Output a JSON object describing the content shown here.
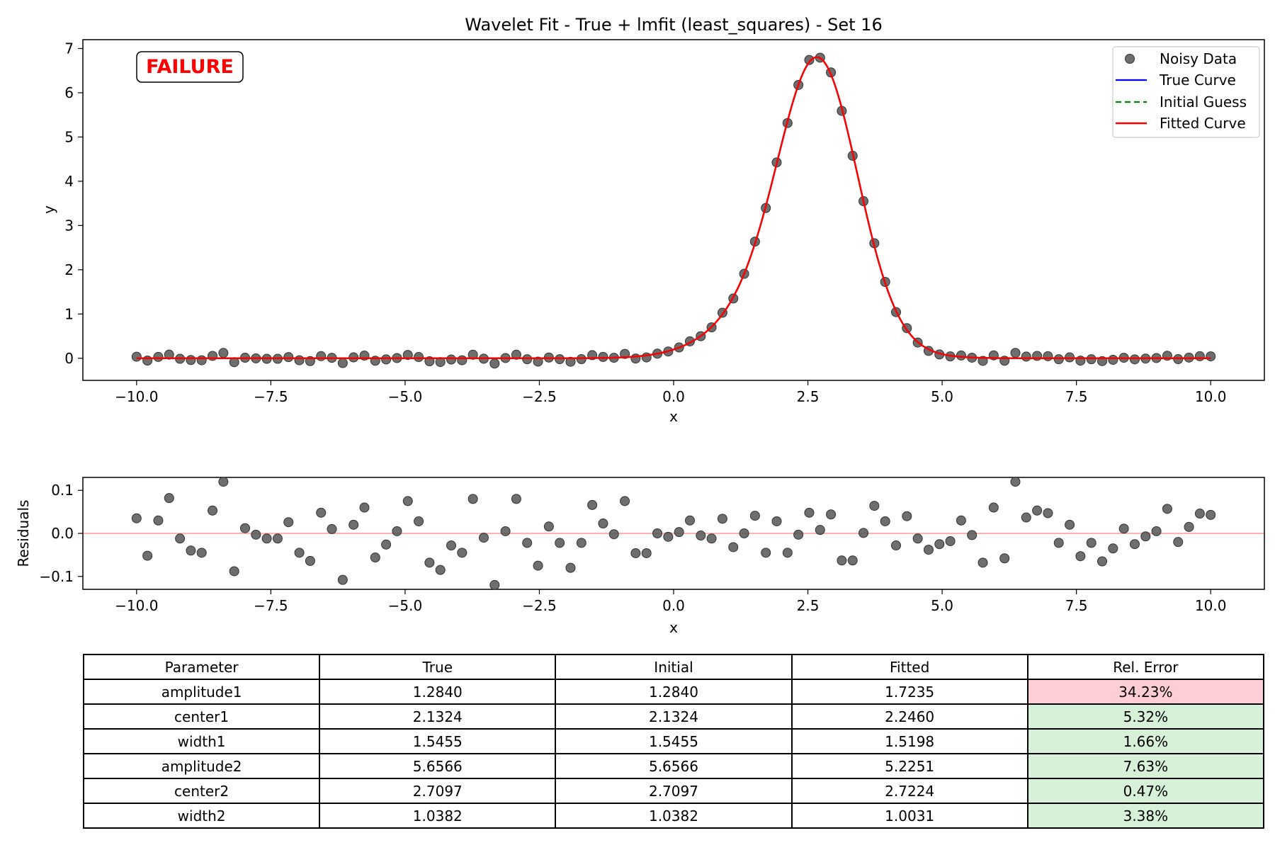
{
  "chart_data": [
    {
      "type": "scatter",
      "title": "Wavelet Fit - True + lmfit (least_squares) - Set 16",
      "xlabel": "x",
      "ylabel": "y",
      "xlim": [
        -11,
        11
      ],
      "ylim": [
        -0.5,
        7.2
      ],
      "xticks": [
        -10,
        -7.5,
        -5,
        -2.5,
        0,
        2.5,
        5,
        7.5,
        10
      ],
      "xtick_labels": [
        "−10.0",
        "−7.5",
        "−5.0",
        "−2.5",
        "0.0",
        "2.5",
        "5.0",
        "7.5",
        "10.0"
      ],
      "yticks": [
        0,
        1,
        2,
        3,
        4,
        5,
        6,
        7
      ],
      "ytick_labels": [
        "0",
        "1",
        "2",
        "3",
        "4",
        "5",
        "6",
        "7"
      ],
      "grid": false,
      "legend_position": "top-right",
      "annotation": "FAILURE",
      "series": [
        {
          "name": "Noisy Data",
          "kind": "markers",
          "color": "#555555"
        },
        {
          "name": "True Curve",
          "kind": "line",
          "color": "#0000ff"
        },
        {
          "name": "Initial Guess",
          "kind": "dashed-line",
          "color": "#008000"
        },
        {
          "name": "Fitted Curve",
          "kind": "line",
          "color": "#ff0000"
        }
      ],
      "model": {
        "components": [
          {
            "amplitude": 1.7235,
            "center": 2.246,
            "width": 1.5198
          },
          {
            "amplitude": 5.2251,
            "center": 2.7224,
            "width": 1.0031
          }
        ],
        "x_start": -10,
        "x_end": 10,
        "n_points": 100
      },
      "residuals": [
        0.035,
        -0.052,
        0.03,
        0.082,
        -0.012,
        -0.04,
        -0.045,
        0.053,
        0.12,
        -0.088,
        0.012,
        -0.003,
        -0.012,
        -0.012,
        0.026,
        -0.045,
        -0.064,
        0.048,
        0.01,
        -0.108,
        0.02,
        0.06,
        -0.056,
        -0.026,
        0.005,
        0.075,
        0.028,
        -0.068,
        -0.085,
        -0.028,
        -0.045,
        0.08,
        -0.01,
        -0.12,
        0.005,
        0.08,
        -0.022,
        -0.075,
        0.016,
        -0.022,
        -0.08,
        -0.022,
        0.066,
        0.023,
        -0.002,
        0.075,
        -0.046,
        -0.046,
        0.0,
        -0.008,
        0.003,
        0.03,
        -0.005,
        -0.012,
        0.034,
        -0.032,
        0.0,
        0.041,
        -0.045,
        0.028,
        -0.045,
        -0.003,
        0.048,
        0.008,
        0.044,
        -0.063,
        -0.063,
        0.001,
        0.064,
        0.028,
        -0.028,
        0.04,
        -0.012,
        -0.038,
        -0.025,
        -0.018,
        0.03,
        -0.004,
        -0.068,
        0.06,
        -0.058,
        0.12,
        0.037,
        0.053,
        0.047,
        -0.022,
        0.02,
        -0.053,
        -0.022,
        -0.065,
        -0.035,
        0.011,
        -0.025,
        -0.007,
        0.005,
        0.057,
        -0.02,
        0.015,
        0.046,
        0.043
      ]
    },
    {
      "type": "scatter",
      "xlabel": "x",
      "ylabel": "Residuals",
      "xlim": [
        -11,
        11
      ],
      "ylim": [
        -0.13,
        0.13
      ],
      "xticks": [
        -10,
        -7.5,
        -5,
        -2.5,
        0,
        2.5,
        5,
        7.5,
        10
      ],
      "xtick_labels": [
        "−10.0",
        "−7.5",
        "−5.0",
        "−2.5",
        "0.0",
        "2.5",
        "5.0",
        "7.5",
        "10.0"
      ],
      "yticks": [
        -0.1,
        0,
        0.1
      ],
      "ytick_labels": [
        "−0.1",
        "0.0",
        "0.1"
      ],
      "grid": false
    },
    {
      "type": "table",
      "columns": [
        "Parameter",
        "True",
        "Initial",
        "Fitted",
        "Rel. Error"
      ],
      "rows": [
        [
          "amplitude1",
          "1.2840",
          "1.2840",
          "1.7235",
          "34.23%"
        ],
        [
          "center1",
          "2.1324",
          "2.1324",
          "2.2460",
          "5.32%"
        ],
        [
          "width1",
          "1.5455",
          "1.5455",
          "1.5198",
          "1.66%"
        ],
        [
          "amplitude2",
          "5.6566",
          "5.6566",
          "5.2251",
          "7.63%"
        ],
        [
          "center2",
          "2.7097",
          "2.7097",
          "2.7224",
          "0.47%"
        ],
        [
          "width2",
          "1.0382",
          "1.0382",
          "1.0031",
          "3.38%"
        ]
      ],
      "error_colors": {
        "bad": "#ffcdd6",
        "good": "#d6f1d8"
      },
      "error_status": [
        "bad",
        "good",
        "good",
        "good",
        "good",
        "good"
      ]
    }
  ]
}
